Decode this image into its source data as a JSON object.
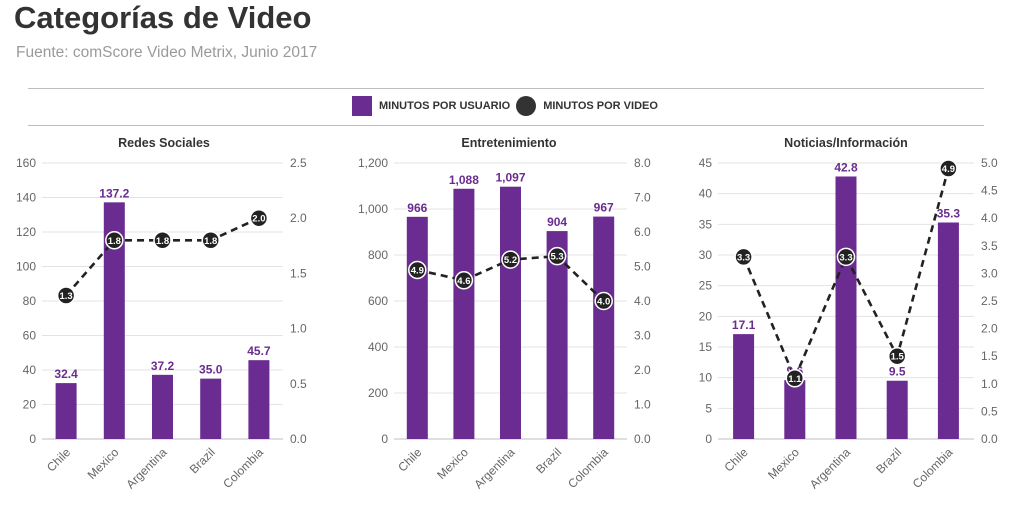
{
  "title": "Categorías de Video",
  "subtitle": "Fuente: comScore Video Metrix, Junio 2017",
  "legend": {
    "bar_label": "MINUTOS POR USUARIO",
    "line_label": "MINUTOS POR VIDEO"
  },
  "colors": {
    "bar": "#6a2c91",
    "line": "#222222",
    "axis_text": "#666666",
    "value_label": "#6a2c91"
  },
  "chart_data": [
    {
      "type": "bar",
      "title": "Redes Sociales",
      "categories": [
        "Chile",
        "Mexico",
        "Argentina",
        "Brazil",
        "Colombia"
      ],
      "series": [
        {
          "name": "MINUTOS POR USUARIO",
          "type": "bar",
          "axis": "left",
          "values": [
            32.4,
            137.2,
            37.2,
            35.0,
            45.7
          ],
          "labels": [
            "32.4",
            "137.2",
            "37.2",
            "35.0",
            "45.7"
          ]
        },
        {
          "name": "MINUTOS POR VIDEO",
          "type": "line",
          "axis": "right",
          "values": [
            1.3,
            1.8,
            1.8,
            1.8,
            2.0
          ],
          "labels": [
            "1.3",
            "1.8",
            "1.8",
            "1.8",
            "2.0"
          ]
        }
      ],
      "ylim": [
        0,
        160
      ],
      "yticks": [
        0,
        20,
        40,
        60,
        80,
        100,
        120,
        140,
        160
      ],
      "ytick_labels": [
        "0",
        "20",
        "40",
        "60",
        "80",
        "100",
        "120",
        "140",
        "160"
      ],
      "y2lim": [
        0,
        2.5
      ],
      "y2ticks": [
        0,
        0.5,
        1,
        1.5,
        2,
        2.5
      ],
      "y2tick_labels": [
        "0.0",
        "0.5",
        "1.0",
        "1.5",
        "2.0",
        "2.5"
      ],
      "grid": true
    },
    {
      "type": "bar",
      "title": "Entretenimiento",
      "categories": [
        "Chile",
        "Mexico",
        "Argentina",
        "Brazil",
        "Colombia"
      ],
      "series": [
        {
          "name": "MINUTOS POR USUARIO",
          "type": "bar",
          "axis": "left",
          "values": [
            966,
            1088,
            1097,
            904,
            967
          ],
          "labels": [
            "966",
            "1,088",
            "1,097",
            "904",
            "967"
          ]
        },
        {
          "name": "MINUTOS POR VIDEO",
          "type": "line",
          "axis": "right",
          "values": [
            4.9,
            4.6,
            5.2,
            5.3,
            4.0
          ],
          "labels": [
            "4.9",
            "4.6",
            "5.2",
            "5.3",
            "4.0"
          ]
        }
      ],
      "ylim": [
        0,
        1200
      ],
      "yticks": [
        0,
        200,
        400,
        600,
        800,
        1000,
        1200
      ],
      "ytick_labels": [
        "0",
        "200",
        "400",
        "600",
        "800",
        "1,000",
        "1,200"
      ],
      "y2lim": [
        0,
        8
      ],
      "y2ticks": [
        0,
        1,
        2,
        3,
        4,
        5,
        6,
        7,
        8
      ],
      "y2tick_labels": [
        "0.0",
        "1.0",
        "2.0",
        "3.0",
        "4.0",
        "5.0",
        "6.0",
        "7.0",
        "8.0"
      ],
      "grid": true
    },
    {
      "type": "bar",
      "title": "Noticias/Información",
      "categories": [
        "Chile",
        "Mexico",
        "Argentina",
        "Brazil",
        "Colombia"
      ],
      "series": [
        {
          "name": "MINUTOS POR USUARIO",
          "type": "bar",
          "axis": "left",
          "values": [
            17.1,
            9.6,
            42.8,
            9.5,
            35.3
          ],
          "labels": [
            "17.1",
            "9.6",
            "42.8",
            "9.5",
            "35.3"
          ]
        },
        {
          "name": "MINUTOS POR VIDEO",
          "type": "line",
          "axis": "right",
          "values": [
            3.3,
            1.1,
            3.3,
            1.5,
            4.9
          ],
          "labels": [
            "3.3",
            "1.1",
            "3.3",
            "1.5",
            "4.9"
          ]
        }
      ],
      "ylim": [
        0,
        45
      ],
      "yticks": [
        0,
        5,
        10,
        15,
        20,
        25,
        30,
        35,
        40,
        45
      ],
      "ytick_labels": [
        "0",
        "5",
        "10",
        "15",
        "20",
        "25",
        "30",
        "35",
        "40",
        "45"
      ],
      "y2lim": [
        0,
        5
      ],
      "y2ticks": [
        0,
        0.5,
        1,
        1.5,
        2,
        2.5,
        3,
        3.5,
        4,
        4.5,
        5
      ],
      "y2tick_labels": [
        "0.0",
        "0.5",
        "1.0",
        "1.5",
        "2.0",
        "2.5",
        "3.0",
        "3.5",
        "4.0",
        "4.5",
        "5.0"
      ],
      "grid": true
    }
  ]
}
